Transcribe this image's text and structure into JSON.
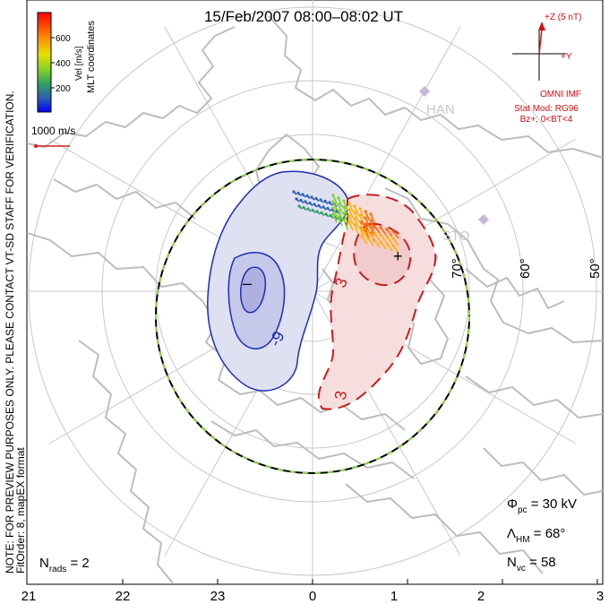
{
  "header": {
    "title": "15/Feb/2007 08:00–08:02 UT"
  },
  "colorbar": {
    "label": "Vel [m/s]",
    "coord_label": "MLT coordinates",
    "ticks": [
      "600",
      "400",
      "200"
    ],
    "colors": [
      "#ff0000",
      "#ff6a00",
      "#ffb000",
      "#e6e600",
      "#7fd12a",
      "#2e9e63",
      "#2a5fb0",
      "#0000ff"
    ]
  },
  "scale_vector": {
    "label": "1000 m/s",
    "color": "#d02020"
  },
  "imf": {
    "z_label": "+Z (5 nT)",
    "y_label": "+Y",
    "source": "OMNI IMF",
    "model_line1": "Stat Mod: RG96",
    "model_line2": "Bz+, 0<BT<4",
    "color": "#d01010"
  },
  "stations": [
    {
      "name": "HAN",
      "icon": "diamond-marker"
    },
    {
      "name": "STO",
      "icon": "diamond-marker"
    }
  ],
  "lat_labels": [
    "70°",
    "60°",
    "50°"
  ],
  "contours": {
    "neg_label": "-9",
    "neg_min_mark": "–",
    "pos_label_upper": "3",
    "pos_label_lower": "3",
    "pos_max_mark": "+",
    "neg_color": "#1a2eb8",
    "pos_color": "#c81c1c"
  },
  "stats": {
    "phi_main": "Φ",
    "phi_sub": "pc",
    "phi_value": " = 30 kV",
    "lambda_main": "Λ",
    "lambda_sub": "HM",
    "lambda_value": " = 68°",
    "nvc_main": "N",
    "nvc_sub": "vc",
    "nvc_value": " = 58",
    "nrads_main": "N",
    "nrads_sub": "rads",
    "nrads_value": " = 2"
  },
  "watermark": {
    "line1": "NOTE: FOR PREVIEW PURPOSES ONLY. PLEASE CONTACT VT-SD STAFF FOR VERIFICATION.",
    "line2": "FitOrder: 8,  mapEX format"
  },
  "mlt_ticks": [
    "21",
    "22",
    "23",
    "0",
    "1",
    "2",
    "3"
  ]
}
